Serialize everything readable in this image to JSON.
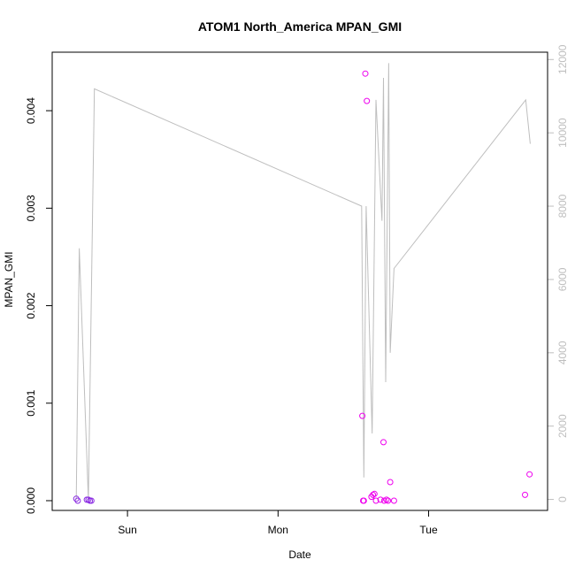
{
  "chart_data": {
    "type": "scatter",
    "title": "ATOM1 North_America MPAN_GMI",
    "xlabel": "Date",
    "ylabel": "MPAN_GMI",
    "y2label": "",
    "x_ticks": [
      {
        "label": "Sun",
        "t": 1.0
      },
      {
        "label": "Mon",
        "t": 2.0
      },
      {
        "label": "Tue",
        "t": 3.0
      }
    ],
    "y_ticks": [
      {
        "label": "0.000",
        "value": 0.0
      },
      {
        "label": "0.001",
        "value": 0.001
      },
      {
        "label": "0.002",
        "value": 0.002
      },
      {
        "label": "0.003",
        "value": 0.003
      },
      {
        "label": "0.004",
        "value": 0.004
      }
    ],
    "y2_ticks": [
      {
        "label": "0",
        "value": 0
      },
      {
        "label": "2000",
        "value": 2000
      },
      {
        "label": "4000",
        "value": 4000
      },
      {
        "label": "6000",
        "value": 6000
      },
      {
        "label": "8000",
        "value": 8000
      },
      {
        "label": "10000",
        "value": 10000
      },
      {
        "label": "12000",
        "value": 12000
      }
    ],
    "xlim": [
      0.5,
      3.79
    ],
    "ylim": [
      -0.0001,
      0.0046
    ],
    "y2lim": [
      -300,
      12200
    ],
    "series": [
      {
        "kind": "points",
        "color": "#8a2be2",
        "points": [
          {
            "t": 0.66,
            "y": 2e-05
          },
          {
            "t": 0.67,
            "y": 0.0
          },
          {
            "t": 0.73,
            "y": 1e-05
          },
          {
            "t": 0.74,
            "y": 1e-05
          },
          {
            "t": 0.75,
            "y": 0.0
          },
          {
            "t": 0.76,
            "y": 0.0
          }
        ]
      },
      {
        "kind": "points",
        "color": "#ee00ee",
        "points": [
          {
            "t": 2.56,
            "y": 0.00087
          },
          {
            "t": 2.565,
            "y": 0.0
          },
          {
            "t": 2.57,
            "y": 0.0
          },
          {
            "t": 2.58,
            "y": 0.00438
          },
          {
            "t": 2.59,
            "y": 0.0041
          },
          {
            "t": 2.62,
            "y": 4e-05
          },
          {
            "t": 2.63,
            "y": 6e-05
          },
          {
            "t": 2.64,
            "y": 7e-05
          },
          {
            "t": 2.65,
            "y": 0.0
          },
          {
            "t": 2.68,
            "y": 1e-05
          },
          {
            "t": 2.7,
            "y": 0.0006
          },
          {
            "t": 2.705,
            "y": 0.0
          },
          {
            "t": 2.72,
            "y": 1e-05
          },
          {
            "t": 2.73,
            "y": 0.0
          },
          {
            "t": 2.745,
            "y": 0.00019
          },
          {
            "t": 2.77,
            "y": 0.0
          },
          {
            "t": 3.64,
            "y": 6e-05
          },
          {
            "t": 3.67,
            "y": 0.00027
          }
        ]
      },
      {
        "kind": "line",
        "axis": "right",
        "color": "#bebebe",
        "points": [
          {
            "t": 0.66,
            "y": 0
          },
          {
            "t": 0.68,
            "y": 6850
          },
          {
            "t": 0.74,
            "y": 0
          },
          {
            "t": 0.78,
            "y": 11200
          },
          {
            "t": 2.555,
            "y": 8000
          },
          {
            "t": 2.57,
            "y": 600
          },
          {
            "t": 2.585,
            "y": 8000
          },
          {
            "t": 2.625,
            "y": 1800
          },
          {
            "t": 2.65,
            "y": 10900
          },
          {
            "t": 2.69,
            "y": 7600
          },
          {
            "t": 2.7,
            "y": 11500
          },
          {
            "t": 2.715,
            "y": 3200
          },
          {
            "t": 2.735,
            "y": 11900
          },
          {
            "t": 2.745,
            "y": 4000
          },
          {
            "t": 2.77,
            "y": 6300
          },
          {
            "t": 3.645,
            "y": 10900
          },
          {
            "t": 3.675,
            "y": 9700
          }
        ]
      }
    ]
  }
}
